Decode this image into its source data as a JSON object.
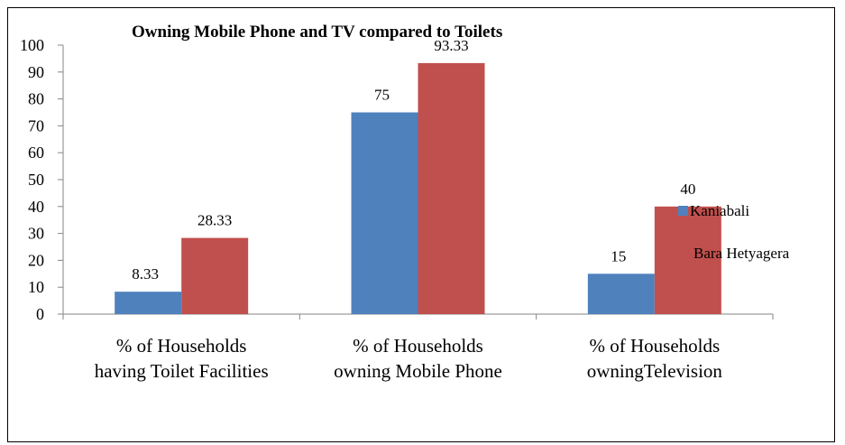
{
  "chart_data": {
    "type": "bar",
    "title": "Owning Mobile Phone and TV compared to Toilets",
    "categories": [
      [
        "% of Households",
        "having Toilet Facilities"
      ],
      [
        "% of Households",
        "owning Mobile Phone"
      ],
      [
        "% of Households",
        "owningTelevision"
      ]
    ],
    "series": [
      {
        "name": "Kaniabali",
        "values": [
          8.33,
          75,
          15
        ],
        "color": "#4f81bd"
      },
      {
        "name": "Bara Hetyagera",
        "values": [
          28.33,
          93.33,
          40
        ],
        "color": "#c0504d"
      }
    ],
    "data_labels": [
      [
        "8.33",
        "75",
        "15"
      ],
      [
        "28.33",
        "93.33",
        "40"
      ]
    ],
    "ylim": [
      0,
      100
    ],
    "yticks": [
      "0",
      "10",
      "20",
      "30",
      "40",
      "50",
      "60",
      "70",
      "80",
      "90",
      "100"
    ],
    "grid": false,
    "legend_position": "right"
  }
}
